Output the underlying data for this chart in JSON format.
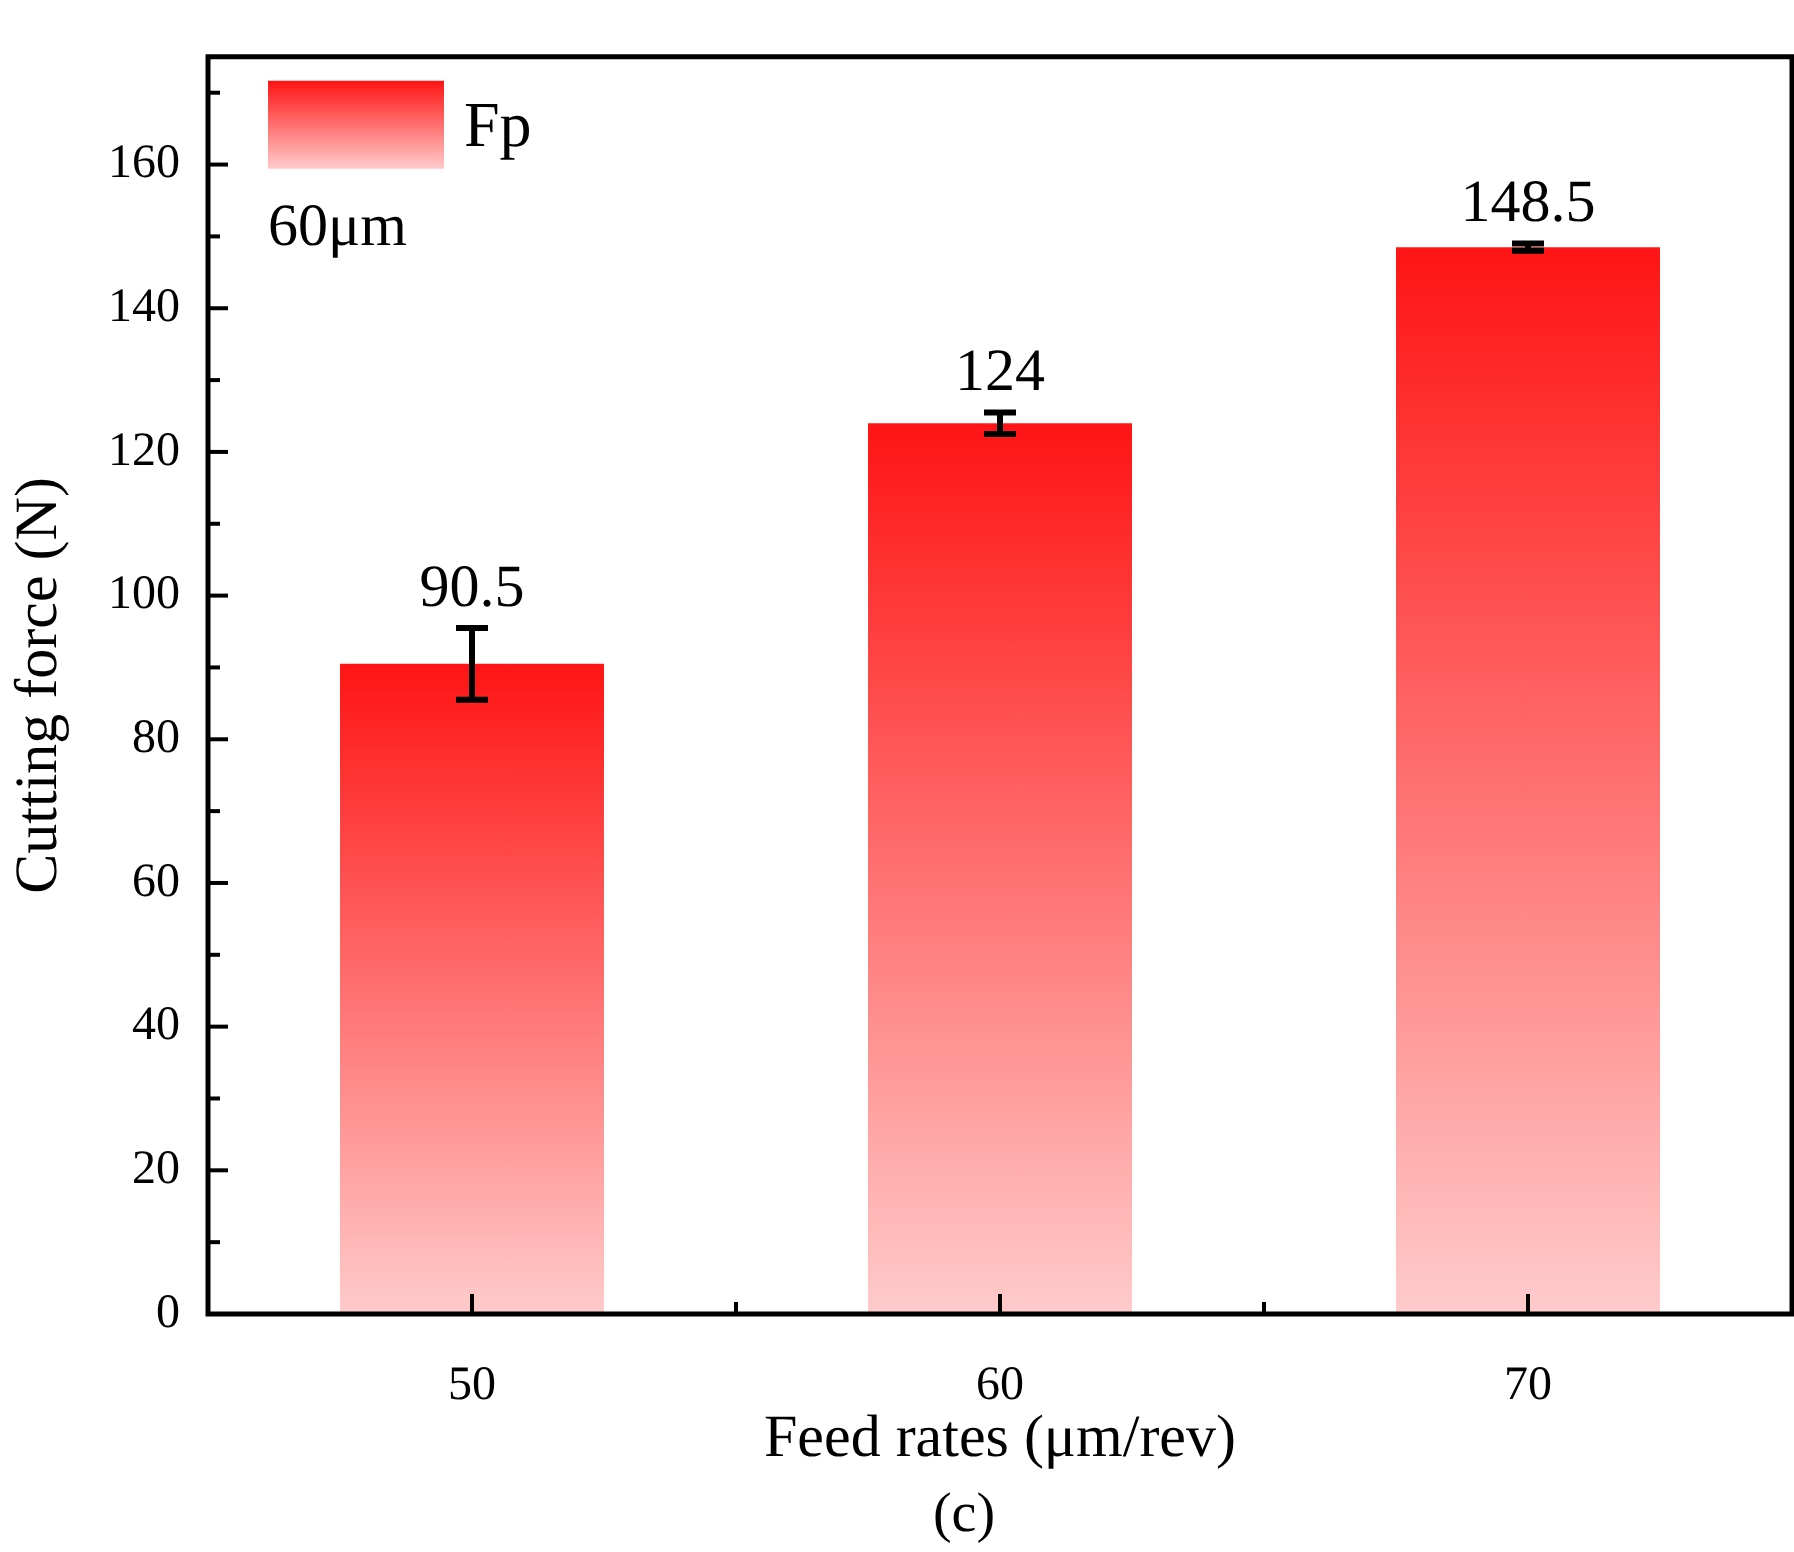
{
  "chart_data": {
    "type": "bar",
    "xlabel": "Feed rates (μm/rev)",
    "ylabel": "Cutting force (N)",
    "categories": [
      "50",
      "60",
      "70"
    ],
    "series": [
      {
        "name": "Fp",
        "color": "#ff1414",
        "values": [
          90.5,
          124,
          148.5
        ],
        "errors": [
          5,
          1.5,
          0.5
        ]
      }
    ],
    "ylim": [
      0,
      175
    ],
    "yticks": [
      0,
      20,
      40,
      60,
      80,
      100,
      120,
      140,
      160
    ],
    "data_labels": true,
    "legend": "top left",
    "grid": false,
    "annotations": [
      "60μm",
      "(c)"
    ]
  }
}
